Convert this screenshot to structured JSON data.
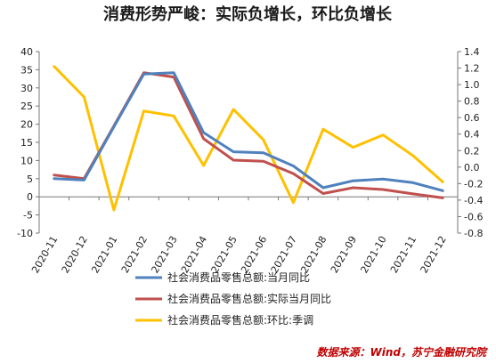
{
  "title": "消费形势严峻：实际负增长，环比负增长",
  "source": "数据来源：Wind，苏宁金融研究院",
  "chart_data": {
    "type": "line",
    "title": "消费形势严峻：实际负增长，环比负增长",
    "categories": [
      "2020-11",
      "2020-12",
      "2021-01",
      "2021-02",
      "2021-03",
      "2021-04",
      "2021-05",
      "2021-06",
      "2021-07",
      "2021-08",
      "2021-09",
      "2021-10",
      "2021-11",
      "2021-12"
    ],
    "y_left": {
      "min": -10,
      "max": 40,
      "ticks": [
        "-10",
        "-5",
        "0",
        "5",
        "10",
        "15",
        "20",
        "25",
        "30",
        "35",
        "40"
      ]
    },
    "y_right": {
      "min": -0.8,
      "max": 1.4,
      "ticks": [
        "-0.8",
        "-0.6",
        "-0.4",
        "-0.2",
        "0.0",
        "0.2",
        "0.4",
        "0.6",
        "0.8",
        "1.0",
        "1.2",
        "1.4"
      ]
    },
    "grid": false,
    "legend_position": "bottom",
    "series": [
      {
        "name": "社会消费品零售总额:当月同比",
        "axis": "left",
        "color": "#4f81bd",
        "values": [
          5.0,
          4.6,
          19.3,
          33.8,
          34.2,
          17.7,
          12.4,
          12.1,
          8.5,
          2.5,
          4.4,
          4.9,
          3.9,
          1.7
        ]
      },
      {
        "name": "社会消费品零售总额:实际当月同比",
        "axis": "left",
        "color": "#c0504d",
        "values": [
          6.0,
          5.0,
          19.5,
          34.2,
          33.0,
          16.0,
          10.1,
          9.8,
          6.4,
          0.9,
          2.5,
          2.0,
          0.8,
          -0.3
        ]
      },
      {
        "name": "社会消费品零售总额:环比:季调",
        "axis": "right",
        "color": "#ffc000",
        "values": [
          1.22,
          0.85,
          -0.52,
          0.68,
          0.62,
          0.02,
          0.7,
          0.33,
          -0.43,
          0.46,
          0.24,
          0.39,
          0.14,
          -0.18
        ]
      }
    ]
  }
}
